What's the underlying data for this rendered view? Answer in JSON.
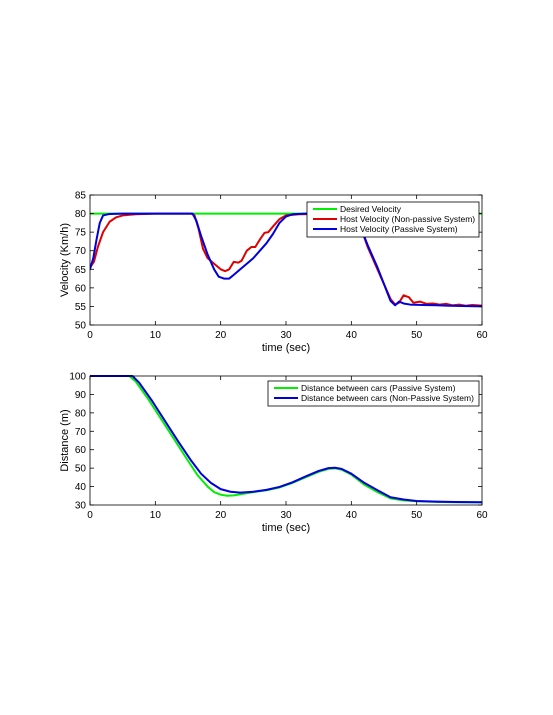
{
  "chart_data": [
    {
      "type": "line",
      "xlabel": "time (sec)",
      "ylabel": "Velocity (Km/h)",
      "xlim": [
        0,
        60
      ],
      "ylim": [
        50,
        85
      ],
      "xticks": [
        0,
        10,
        20,
        30,
        40,
        50,
        60
      ],
      "yticks": [
        50,
        55,
        60,
        65,
        70,
        75,
        80,
        85
      ],
      "legend_position": "top-right",
      "series": [
        {
          "name": "Desired Velocity",
          "color": "#00ee00",
          "points": [
            [
              0,
              80
            ],
            [
              60,
              80
            ]
          ]
        },
        {
          "name": "Host Velocity (Non-passive System)",
          "color": "#e00000",
          "points": [
            [
              0,
              65.5
            ],
            [
              0.6,
              67
            ],
            [
              1.2,
              71
            ],
            [
              2,
              75
            ],
            [
              3,
              77.8
            ],
            [
              4,
              79
            ],
            [
              5,
              79.5
            ],
            [
              7,
              79.8
            ],
            [
              10,
              80
            ],
            [
              15.5,
              80
            ],
            [
              16,
              79.5
            ],
            [
              16.6,
              76
            ],
            [
              17.3,
              70.5
            ],
            [
              18,
              68
            ],
            [
              19,
              66.5
            ],
            [
              20,
              65
            ],
            [
              20.7,
              64.5
            ],
            [
              21.3,
              65
            ],
            [
              22,
              67
            ],
            [
              22.7,
              66.8
            ],
            [
              23.2,
              67.3
            ],
            [
              24,
              70
            ],
            [
              24.7,
              71
            ],
            [
              25.3,
              71
            ],
            [
              26,
              73
            ],
            [
              26.7,
              74.8
            ],
            [
              27.3,
              75
            ],
            [
              28,
              76.5
            ],
            [
              29,
              78.5
            ],
            [
              30,
              79.5
            ],
            [
              32,
              79.8
            ],
            [
              38,
              80
            ],
            [
              40.5,
              80
            ],
            [
              41.5,
              76
            ],
            [
              42.5,
              71
            ],
            [
              44,
              65
            ],
            [
              45,
              61
            ],
            [
              46,
              57
            ],
            [
              46.7,
              55.5
            ],
            [
              47.3,
              56
            ],
            [
              48,
              58
            ],
            [
              48.8,
              57.5
            ],
            [
              49.5,
              56
            ],
            [
              50.5,
              56.3
            ],
            [
              51.5,
              55.7
            ],
            [
              52.5,
              55.8
            ],
            [
              53.5,
              55.5
            ],
            [
              54.5,
              55.7
            ],
            [
              55.5,
              55.3
            ],
            [
              56.5,
              55.5
            ],
            [
              57.5,
              55.2
            ],
            [
              58.5,
              55.4
            ],
            [
              60,
              55.2
            ]
          ]
        },
        {
          "name": "Host Velocity (Passive System)",
          "color": "#0000dd",
          "points": [
            [
              0,
              65
            ],
            [
              0.5,
              68
            ],
            [
              1,
              73
            ],
            [
              1.5,
              77.5
            ],
            [
              2,
              79.5
            ],
            [
              3,
              79.9
            ],
            [
              5,
              80
            ],
            [
              15,
              80
            ],
            [
              15.7,
              80
            ],
            [
              16.3,
              78
            ],
            [
              17,
              74
            ],
            [
              18,
              69
            ],
            [
              19,
              65
            ],
            [
              19.7,
              63
            ],
            [
              20.5,
              62.5
            ],
            [
              21.3,
              62.5
            ],
            [
              22,
              63.5
            ],
            [
              23,
              65
            ],
            [
              24,
              66.5
            ],
            [
              25,
              68
            ],
            [
              26,
              70
            ],
            [
              27,
              72
            ],
            [
              28,
              74.5
            ],
            [
              29,
              77.5
            ],
            [
              30,
              79.2
            ],
            [
              31,
              79.8
            ],
            [
              33,
              80
            ],
            [
              39,
              80
            ],
            [
              40.5,
              79.8
            ],
            [
              41.5,
              76
            ],
            [
              42.5,
              71.5
            ],
            [
              44,
              65.5
            ],
            [
              45,
              61
            ],
            [
              46,
              56.5
            ],
            [
              46.7,
              55.3
            ],
            [
              47.3,
              56.3
            ],
            [
              48,
              55.8
            ],
            [
              49,
              55.5
            ],
            [
              51,
              55.4
            ],
            [
              53,
              55.3
            ],
            [
              55,
              55.2
            ],
            [
              57,
              55.1
            ],
            [
              60,
              55
            ]
          ]
        }
      ]
    },
    {
      "type": "line",
      "xlabel": "time (sec)",
      "ylabel": "Distance (m)",
      "xlim": [
        0,
        60
      ],
      "ylim": [
        30,
        100
      ],
      "xticks": [
        0,
        10,
        20,
        30,
        40,
        50,
        60
      ],
      "yticks": [
        30,
        40,
        50,
        60,
        70,
        80,
        90,
        100
      ],
      "legend_position": "top-right",
      "series": [
        {
          "name": "Distance between cars (Passive System)",
          "color": "#00ee00",
          "points": [
            [
              0,
              100
            ],
            [
              6,
              100
            ],
            [
              7,
              97
            ],
            [
              9,
              87
            ],
            [
              11,
              76
            ],
            [
              13,
              65
            ],
            [
              15,
              54
            ],
            [
              16.5,
              46
            ],
            [
              18,
              40
            ],
            [
              19,
              37
            ],
            [
              20,
              35.6
            ],
            [
              21,
              35
            ],
            [
              22,
              35.2
            ],
            [
              23,
              35.8
            ],
            [
              25,
              37
            ],
            [
              27,
              38
            ],
            [
              29,
              39.5
            ],
            [
              31,
              42
            ],
            [
              33,
              45
            ],
            [
              35,
              48
            ],
            [
              36.5,
              49.6
            ],
            [
              37.5,
              49.9
            ],
            [
              38.5,
              49.2
            ],
            [
              40,
              46.5
            ],
            [
              42,
              41
            ],
            [
              44,
              37
            ],
            [
              46,
              33.6
            ],
            [
              48,
              32.5
            ],
            [
              50,
              32
            ],
            [
              53,
              31.7
            ],
            [
              56,
              31.5
            ],
            [
              60,
              31.4
            ]
          ]
        },
        {
          "name": "Distance between cars (Non-Passive System)",
          "color": "#0000dd",
          "points": [
            [
              0,
              100
            ],
            [
              6.5,
              100
            ],
            [
              7.5,
              96.5
            ],
            [
              9.5,
              86.5
            ],
            [
              11.5,
              75.5
            ],
            [
              13.5,
              64.5
            ],
            [
              15.5,
              54
            ],
            [
              17,
              47
            ],
            [
              18.5,
              42
            ],
            [
              20,
              38.6
            ],
            [
              21.5,
              37.2
            ],
            [
              23,
              36.7
            ],
            [
              25,
              37.2
            ],
            [
              27,
              38.2
            ],
            [
              29,
              39.8
            ],
            [
              31,
              42.3
            ],
            [
              33,
              45.5
            ],
            [
              35,
              48.5
            ],
            [
              36.5,
              50
            ],
            [
              37.5,
              50.2
            ],
            [
              38.5,
              49.6
            ],
            [
              40,
              47
            ],
            [
              42,
              42
            ],
            [
              44,
              38
            ],
            [
              46,
              34.2
            ],
            [
              48,
              33
            ],
            [
              50,
              32.2
            ],
            [
              53,
              31.8
            ],
            [
              56,
              31.6
            ],
            [
              60,
              31.5
            ]
          ]
        }
      ]
    }
  ]
}
